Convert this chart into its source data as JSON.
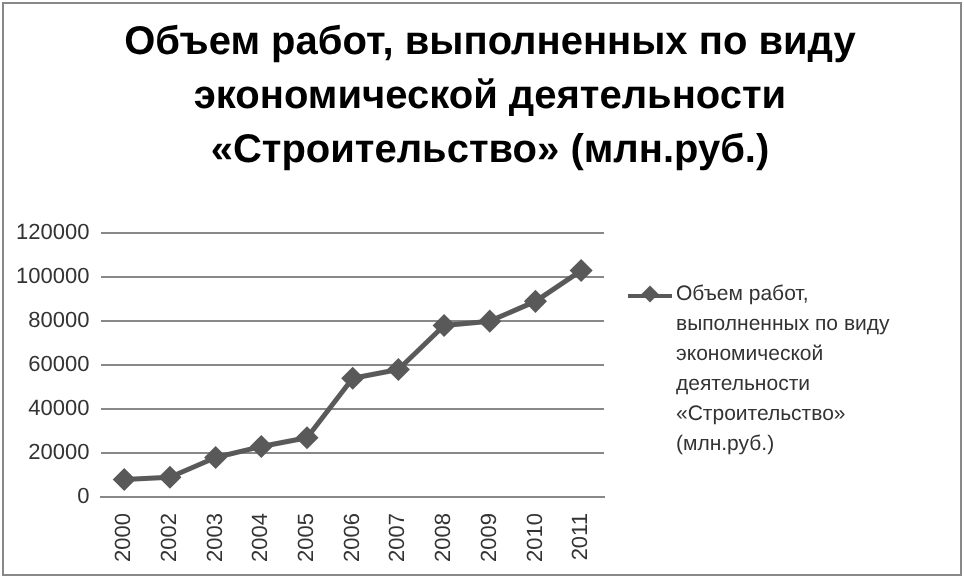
{
  "chart_data": {
    "type": "line",
    "title": "Объем работ, выполненных по виду экономической деятельности «Строительство» (млн.руб.)",
    "categories": [
      "2000",
      "2002",
      "2003",
      "2004",
      "2005",
      "2006",
      "2007",
      "2008",
      "2009",
      "2010",
      "2011"
    ],
    "series": [
      {
        "name": "Объем работ, выполненных по виду экономической деятельности «Строительство» (млн.руб.)",
        "color": "#595959",
        "values": [
          8000,
          9000,
          18000,
          23000,
          27000,
          54000,
          58000,
          78000,
          80000,
          89000,
          103000
        ]
      }
    ],
    "ylim": [
      0,
      120000
    ],
    "yticks": [
      0,
      20000,
      40000,
      60000,
      80000,
      100000,
      120000
    ],
    "grid": "y",
    "legend": "right",
    "marker": "diamond",
    "line_style": "solid"
  }
}
